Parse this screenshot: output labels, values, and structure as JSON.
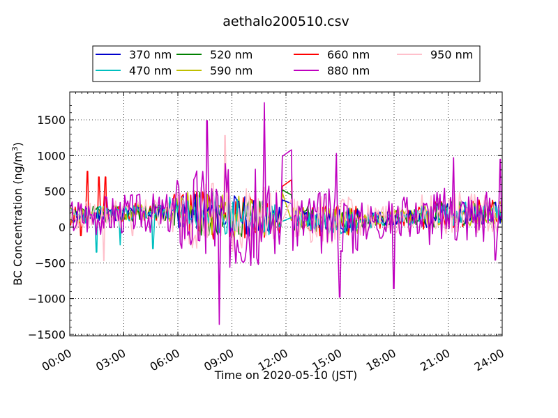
{
  "chart_data": {
    "type": "line",
    "title": "aethalo200510.csv",
    "xlabel": "Time on 2020-05-10 (JST)",
    "ylabel_main": "BC Concentration (ng/m",
    "ylabel_sup": "3",
    "ylabel_close": ")",
    "xlim": [
      "2020-05-10 00:00",
      "2020-05-11 00:00"
    ],
    "ylim": [
      -1520,
      1890
    ],
    "x_ticks": [
      {
        "label": "00:00",
        "hour": 0
      },
      {
        "label": "03:00",
        "hour": 3
      },
      {
        "label": "06:00",
        "hour": 6
      },
      {
        "label": "09:00",
        "hour": 9
      },
      {
        "label": "12:00",
        "hour": 12
      },
      {
        "label": "15:00",
        "hour": 15
      },
      {
        "label": "18:00",
        "hour": 18
      },
      {
        "label": "21:00",
        "hour": 21
      },
      {
        "label": "24:00",
        "hour": 24
      }
    ],
    "y_ticks": [
      {
        "label": "1500",
        "value": 1500
      },
      {
        "label": "1000",
        "value": 1000
      },
      {
        "label": "500",
        "value": 500
      },
      {
        "label": "0",
        "value": 0
      },
      {
        "label": "−500",
        "value": -500
      },
      {
        "label": "−1000",
        "value": -1000
      },
      {
        "label": "−1500",
        "value": -1500
      }
    ],
    "grid": true,
    "legend_position": "top",
    "series": [
      {
        "name": "370 nm",
        "color": "#0000cc",
        "amplitude": 200,
        "seed": 11,
        "points": [
          [
            11.8,
            380
          ],
          [
            12.3,
            330
          ]
        ]
      },
      {
        "name": "470 nm",
        "color": "#00bfbf",
        "amplitude": 210,
        "seed": 23,
        "points": [
          [
            1.5,
            -350
          ],
          [
            2.8,
            -250
          ],
          [
            4.6,
            -300
          ]
        ]
      },
      {
        "name": "520 nm",
        "color": "#008000",
        "amplitude": 220,
        "seed": 37,
        "points": [
          [
            11.8,
            520
          ],
          [
            12.3,
            450
          ]
        ]
      },
      {
        "name": "590 nm",
        "color": "#bfbf00",
        "amplitude": 230,
        "seed": 41,
        "points": [
          [
            11.8,
            480
          ]
        ]
      },
      {
        "name": "660 nm",
        "color": "#ff0000",
        "amplitude": 240,
        "seed": 53,
        "points": [
          [
            0.6,
            -120
          ],
          [
            1.0,
            780
          ],
          [
            1.6,
            700
          ],
          [
            2.0,
            700
          ],
          [
            11.8,
            570
          ],
          [
            12.3,
            660
          ]
        ]
      },
      {
        "name": "880 nm",
        "color": "#bf00bf",
        "amplitude": 520,
        "seed": 67,
        "points": [
          [
            8.3,
            -1360
          ],
          [
            10.8,
            1740
          ],
          [
            7.6,
            1490
          ],
          [
            11.8,
            990
          ],
          [
            12.3,
            1080
          ],
          [
            14.8,
            1030
          ],
          [
            15.0,
            -980
          ],
          [
            21.3,
            970
          ],
          [
            23.9,
            950
          ],
          [
            23.6,
            -460
          ],
          [
            18.0,
            -860
          ]
        ]
      },
      {
        "name": "950 nm",
        "color": "#ffc0cb",
        "amplitude": 380,
        "seed": 79,
        "points": [
          [
            1.9,
            -470
          ],
          [
            8.6,
            1280
          ],
          [
            3.5,
            -120
          ]
        ]
      }
    ]
  }
}
